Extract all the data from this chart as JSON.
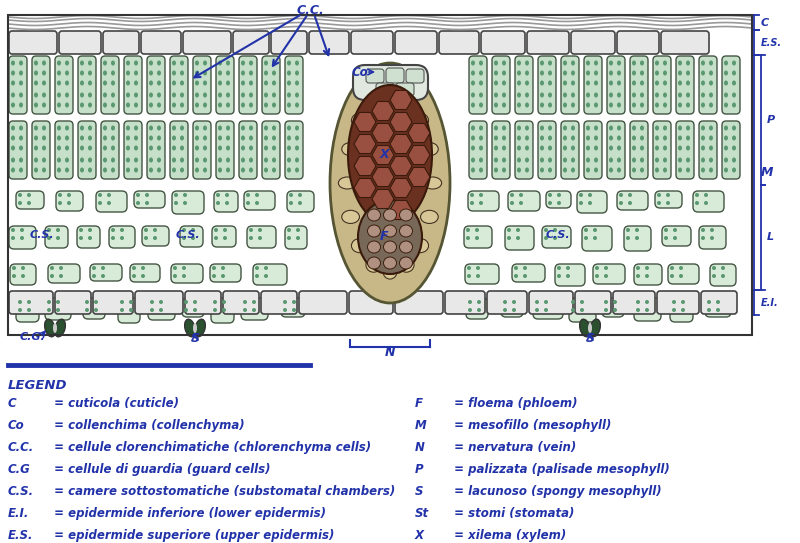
{
  "bg_color": "#ffffff",
  "blue": "#2233aa",
  "cell_fill": "#c5dfc8",
  "cell_fill2": "#d8ead8",
  "cell_stroke": "#445544",
  "epi_fill": "#e8e8e8",
  "epi_stroke": "#444444",
  "cuticle_color": "#aaaaaa",
  "vein_sheath": "#c8a878",
  "vein_xylem": "#7a4030",
  "vein_xylem2": "#9a6050",
  "vein_phloem": "#a08878",
  "guard_fill": "#2a5030",
  "legend_items_left": [
    [
      "C",
      " = cuticola (cuticle)"
    ],
    [
      "Co",
      " = collenchima (collenchyma)"
    ],
    [
      "C.C.",
      " = cellule clorenchimatiche (chlorenchyma cells)"
    ],
    [
      "C.G",
      " = cellule di guardia (guard cells)"
    ],
    [
      "C.S.",
      " = camere sottostomatiche (substomatal chambers)"
    ],
    [
      "E.I.",
      " = epidermide inferiore (lower epidermis)"
    ],
    [
      "E.S.",
      " = epidermide superiore (upper epidermis)"
    ]
  ],
  "legend_items_right": [
    [
      "F",
      " = floema (phloem)"
    ],
    [
      "M",
      " = mesofillo (mesophyll)"
    ],
    [
      "N",
      " = nervatura (vein)"
    ],
    [
      "P",
      " = palizzata (palisade mesophyll)"
    ],
    [
      "S",
      " = lacunoso (spongy mesophyll)"
    ],
    [
      "St",
      " = stomi (stomata)"
    ],
    [
      "X",
      " = xilema (xylem)"
    ]
  ]
}
